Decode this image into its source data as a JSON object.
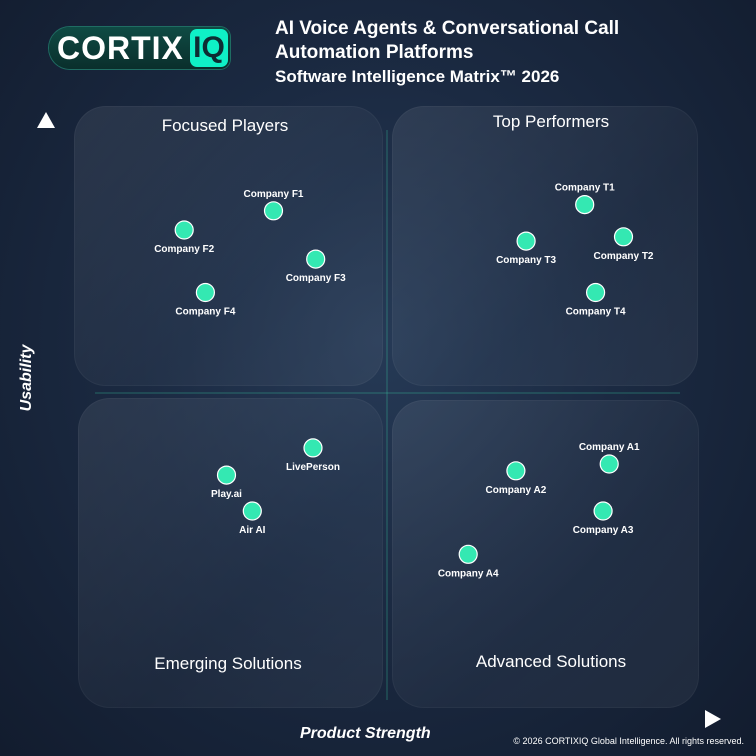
{
  "logo": {
    "word": "CORTIX",
    "badge": "IQ"
  },
  "title": {
    "line1": "AI Voice Agents & Conversational Call",
    "line2": "Automation Platforms",
    "subtitle": "Software Intelligence Matrix™ 2026"
  },
  "quadrants": {
    "top_left": "Focused Players",
    "top_right": "Top Performers",
    "bottom_left": "Emerging Solutions",
    "bottom_right": "Advanced Solutions"
  },
  "footer": {
    "copyright": "© 2026 CORTIXIQ Global Intelligence. All rights reserved."
  },
  "colors": {
    "point": "#34e8b2",
    "accent": "#0ff0c6"
  },
  "chart_data": {
    "type": "scatter",
    "xlabel": "Product Strength",
    "ylabel": "Usability",
    "xlim": [
      0,
      100
    ],
    "ylim": [
      0,
      100
    ],
    "points": [
      {
        "label": "Company F1",
        "x": 33.4,
        "y": 82.1,
        "label_pos": "above"
      },
      {
        "label": "Company F2",
        "x": 20.3,
        "y": 79.0,
        "label_pos": "below"
      },
      {
        "label": "Company F3",
        "x": 39.6,
        "y": 74.3,
        "label_pos": "below"
      },
      {
        "label": "Company F4",
        "x": 23.4,
        "y": 68.9,
        "label_pos": "below"
      },
      {
        "label": "Company T1",
        "x": 79.1,
        "y": 83.1,
        "label_pos": "above"
      },
      {
        "label": "Company T2",
        "x": 84.8,
        "y": 77.9,
        "label_pos": "below"
      },
      {
        "label": "Company T3",
        "x": 70.5,
        "y": 77.2,
        "label_pos": "below"
      },
      {
        "label": "Company T4",
        "x": 80.7,
        "y": 68.9,
        "label_pos": "below"
      },
      {
        "label": "LivePerson",
        "x": 39.2,
        "y": 43.8,
        "label_pos": "below"
      },
      {
        "label": "Play.ai",
        "x": 26.5,
        "y": 39.4,
        "label_pos": "below"
      },
      {
        "label": "Air AI",
        "x": 30.3,
        "y": 33.6,
        "label_pos": "below"
      },
      {
        "label": "Company A1",
        "x": 82.7,
        "y": 41.2,
        "label_pos": "above"
      },
      {
        "label": "Company A2",
        "x": 69.0,
        "y": 40.1,
        "label_pos": "below"
      },
      {
        "label": "Company A3",
        "x": 81.8,
        "y": 33.6,
        "label_pos": "below"
      },
      {
        "label": "Company A4",
        "x": 62.0,
        "y": 26.6,
        "label_pos": "below"
      }
    ]
  }
}
